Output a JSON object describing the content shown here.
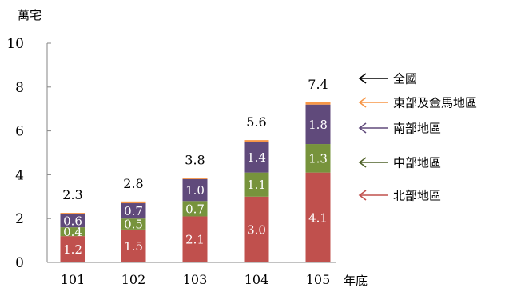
{
  "chart_data": {
    "type": "bar",
    "stacked": true,
    "ylabel": "萬宅",
    "xlabel": "年底",
    "ylim": [
      0,
      10
    ],
    "yticks": [
      0,
      2,
      4,
      6,
      8,
      10
    ],
    "categories": [
      "101",
      "102",
      "103",
      "104",
      "105"
    ],
    "totals": [
      2.3,
      2.8,
      3.8,
      5.6,
      7.4
    ],
    "series": [
      {
        "name": "北部地區",
        "color": "#c0504d",
        "values": [
          1.2,
          1.5,
          2.1,
          3.0,
          4.1
        ],
        "labels": [
          "1.2",
          "1.5",
          "2.1",
          "3.0",
          "4.1"
        ]
      },
      {
        "name": "中部地區",
        "color": "#77933c",
        "values": [
          0.4,
          0.5,
          0.7,
          1.1,
          1.3
        ],
        "labels": [
          "0.4",
          "0.5",
          "0.7",
          "1.1",
          "1.3"
        ]
      },
      {
        "name": "南部地區",
        "color": "#604a7b",
        "values": [
          0.6,
          0.7,
          1.0,
          1.4,
          1.8
        ],
        "labels": [
          "0.6",
          "0.7",
          "1.0",
          "1.4",
          "1.8"
        ]
      },
      {
        "name": "東部及金馬地區",
        "color": "#f79646",
        "values": [
          0.06,
          0.08,
          0.05,
          0.08,
          0.1
        ],
        "labels": [
          "",
          "",
          "",
          "",
          ""
        ]
      }
    ],
    "legend": [
      {
        "label": "全國",
        "color": "#000000"
      },
      {
        "label": "東部及金馬地區",
        "color": "#f79646"
      },
      {
        "label": "南部地區",
        "color": "#604a7b"
      },
      {
        "label": "中部地區",
        "color": "#4f6228"
      },
      {
        "label": "北部地區",
        "color": "#c0504d"
      }
    ],
    "legend_position": "right",
    "grid": false
  }
}
